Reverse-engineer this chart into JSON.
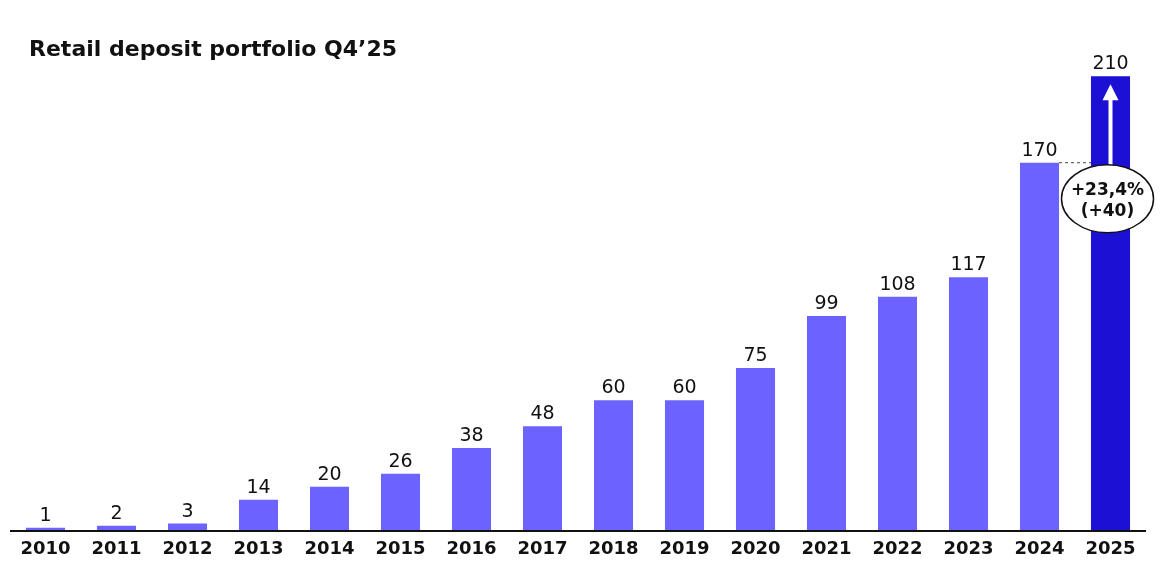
{
  "chart_data": {
    "type": "bar",
    "title": "Retail deposit portfolio Q4’25",
    "categories": [
      "2010",
      "2011",
      "2012",
      "2013",
      "2014",
      "2015",
      "2016",
      "2017",
      "2018",
      "2019",
      "2020",
      "2021",
      "2022",
      "2023",
      "2024",
      "2025"
    ],
    "values": [
      1,
      2,
      3,
      14,
      20,
      26,
      38,
      48,
      60,
      60,
      75,
      99,
      108,
      117,
      170,
      210
    ],
    "colors": [
      "#6c63ff",
      "#6c63ff",
      "#6c63ff",
      "#6c63ff",
      "#6c63ff",
      "#6c63ff",
      "#6c63ff",
      "#6c63ff",
      "#6c63ff",
      "#6c63ff",
      "#6c63ff",
      "#6c63ff",
      "#6c63ff",
      "#6c63ff",
      "#6c63ff",
      "#1c10d4"
    ],
    "data_labels": true,
    "grid": false,
    "annotations": [
      "+23,4%\n(+40)"
    ]
  }
}
